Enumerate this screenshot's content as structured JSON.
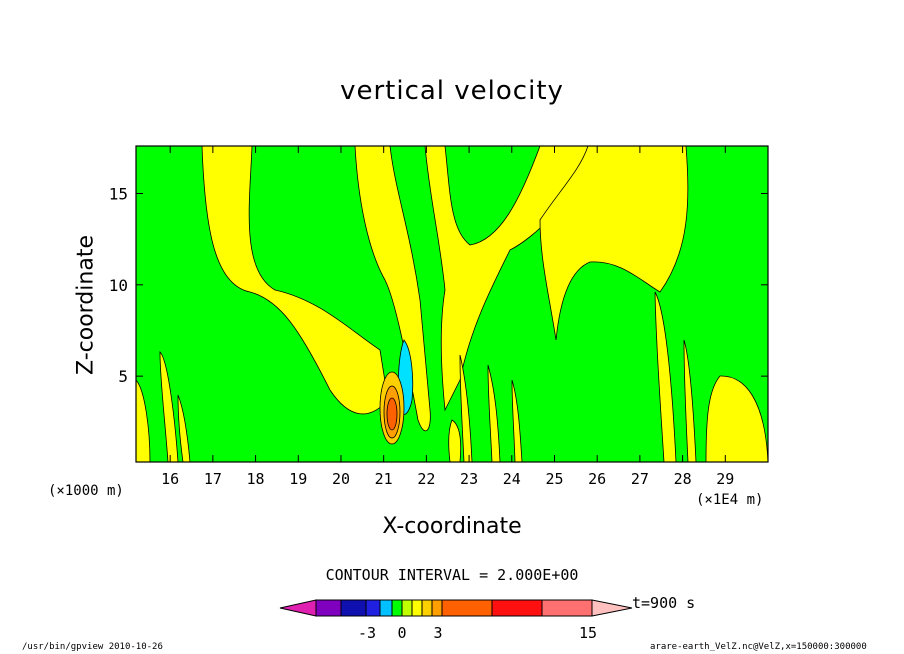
{
  "chart_data": {
    "type": "heatmap",
    "title": "vertical velocity",
    "xlabel": "X-coordinate",
    "ylabel": "Z-coordinate",
    "x_unit_left": "(×1000 m)",
    "x_unit_right": "(×1E4 m)",
    "xlim": [
      15.2,
      30.0
    ],
    "ylim": [
      0.3,
      17.6
    ],
    "x_ticks": [
      "16",
      "17",
      "18",
      "19",
      "20",
      "21",
      "22",
      "23",
      "24",
      "25",
      "26",
      "27",
      "28",
      "29"
    ],
    "y_ticks": [
      "5",
      "10",
      "15"
    ],
    "contour_interval": "CONTOUR INTERVAL = 2.000E+00",
    "time_label": "t=900 s",
    "colorbar": {
      "labels": [
        "-3",
        "0",
        "3",
        "15"
      ],
      "colors": [
        "#e020b0",
        "#8000c0",
        "#1010b0",
        "#2020e0",
        "#00c0ff",
        "#00ff00",
        "#c0ff00",
        "#ffff00",
        "#ffd000",
        "#ffa000",
        "#ff6000",
        "#ff1010",
        "#ff7070",
        "#ffc0c0"
      ]
    },
    "regions": [
      {
        "name": "green-background",
        "color": "#00ff00"
      },
      {
        "name": "yellow-upper-left",
        "color": "#ffff00"
      },
      {
        "name": "yellow-middle-band",
        "color": "#ffff00"
      },
      {
        "name": "yellow-right-band",
        "color": "#ffff00"
      },
      {
        "name": "cyan-downdraft",
        "color": "#00e0ff"
      },
      {
        "name": "updraft-core",
        "color": "#ff6000"
      }
    ],
    "grid": false
  },
  "footer": {
    "left": "/usr/bin/gpview   2010-10-26",
    "right": "arare-earth_VelZ.nc@VelZ,x=150000:300000"
  }
}
